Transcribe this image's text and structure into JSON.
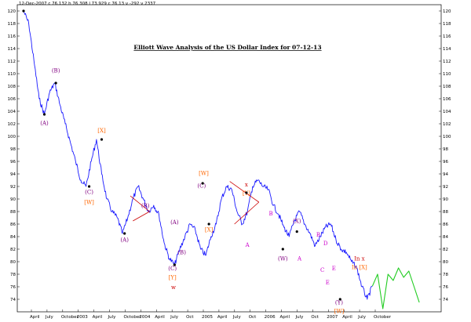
{
  "header_text": "12-Dec-2007  c 76.132  h 76.308  l 73.929  c 76.13  v -292  v 2337",
  "chart_data": {
    "type": "line",
    "title": "Elliott Wave Analysis of the US Dollar Index for 07-12-13",
    "xlabel": "",
    "ylabel": "",
    "ylim": [
      72,
      121
    ],
    "y_ticks": [
      74,
      76,
      78,
      80,
      82,
      84,
      86,
      88,
      90,
      92,
      94,
      96,
      98,
      100,
      102,
      104,
      106,
      108,
      110,
      112,
      114,
      116,
      118,
      120
    ],
    "x_ticks": [
      "April",
      "July",
      "October",
      "2003",
      "April",
      "July",
      "October",
      "2004",
      "April",
      "July",
      "Oct",
      "2005",
      "April",
      "July",
      "Oct",
      "2006",
      "April",
      "July",
      "Oct",
      "2007",
      "April",
      "July",
      "October"
    ],
    "grid": false,
    "legend": "none",
    "series": [
      {
        "color": "#1a1aff",
        "x": [
          0,
          1,
          2,
          3,
          4,
          5,
          6,
          7,
          8,
          9,
          10,
          11,
          12,
          13,
          14,
          15,
          16,
          17,
          18,
          19,
          20,
          21,
          22,
          23,
          24,
          25,
          26,
          27,
          28,
          29,
          30,
          31,
          32,
          33,
          34,
          35,
          36,
          37,
          38,
          39,
          40,
          41,
          42,
          43,
          44,
          45,
          46,
          47,
          48,
          49,
          50,
          51,
          52,
          53,
          54,
          55,
          56,
          57,
          58,
          59,
          60,
          61,
          62,
          63,
          64,
          65,
          66,
          67
        ],
        "y": [
          120,
          118,
          112,
          106,
          103.5,
          107,
          108.5,
          105,
          102,
          99,
          96,
          93,
          92,
          96,
          99.5,
          94,
          90,
          88,
          87,
          84.5,
          87,
          90,
          92,
          90,
          88,
          89,
          87.5,
          83,
          80.5,
          79.5,
          82,
          84,
          86,
          85,
          82,
          81,
          84,
          86,
          90,
          92,
          91.5,
          88,
          86,
          88,
          92,
          93,
          92,
          91.5,
          89,
          87.5,
          85.5,
          84,
          86.5,
          88,
          86,
          84.5,
          82.5,
          84,
          85.5,
          86,
          83.5,
          82,
          81.5,
          80,
          79,
          76,
          74,
          76.1
        ]
      },
      {
        "name": "",
        "color": "#22cc22",
        "x": [
          67,
          68,
          69,
          70,
          71,
          72,
          73,
          74,
          75,
          76
        ],
        "y": [
          76.1,
          78,
          72.5,
          78,
          77,
          79,
          77.5,
          78.5,
          76,
          73.5
        ]
      }
    ],
    "annotations": [
      {
        "text": "(A)",
        "color": "#800080"
      },
      {
        "text": "(B)",
        "color": "#800080"
      },
      {
        "text": "[X]",
        "color": "#ff6600"
      },
      {
        "text": "(C)",
        "color": "#800080"
      },
      {
        "text": "[W]",
        "color": "#ff6600"
      },
      {
        "text": "(A)",
        "color": "#800080"
      },
      {
        "text": "(B)",
        "color": "#800080"
      },
      {
        "text": "(A)",
        "color": "#800080"
      },
      {
        "text": "(B)",
        "color": "#800080"
      },
      {
        "text": "(C)",
        "color": "#800080"
      },
      {
        "text": "[Y]",
        "color": "#ff6600"
      },
      {
        "text": "w",
        "color": "#cc0000"
      },
      {
        "text": "[W]",
        "color": "#ff6600"
      },
      {
        "text": "(C)",
        "color": "#800080"
      },
      {
        "text": "[X]",
        "color": "#ff6600"
      },
      {
        "text": "x",
        "color": "#cc0000"
      },
      {
        "text": "[Y]",
        "color": "#ff6600"
      },
      {
        "text": "A",
        "color": "#cc00cc"
      },
      {
        "text": "B",
        "color": "#cc00cc"
      },
      {
        "text": "(X)",
        "color": "#800080"
      },
      {
        "text": "(W)",
        "color": "#800080"
      },
      {
        "text": "A",
        "color": "#cc00cc"
      },
      {
        "text": "B",
        "color": "#cc00cc"
      },
      {
        "text": "D",
        "color": "#cc00cc"
      },
      {
        "text": "C",
        "color": "#cc00cc"
      },
      {
        "text": "E",
        "color": "#cc00cc"
      },
      {
        "text": "E",
        "color": "#cc00cc"
      },
      {
        "text": "(Y)",
        "color": "#800080"
      },
      {
        "text": "[W]",
        "color": "#ff6600"
      },
      {
        "text": "In x",
        "color": "#cc0000"
      },
      {
        "text": "In [X]",
        "color": "#ff6600"
      }
    ]
  }
}
